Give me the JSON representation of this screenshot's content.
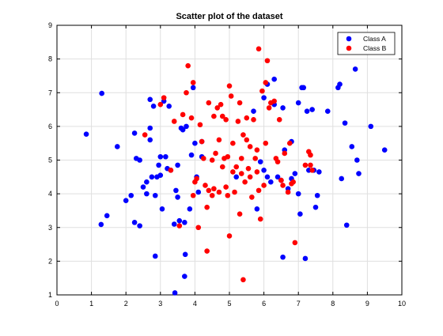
{
  "chart_data": {
    "type": "scatter",
    "title": "Scatter plot of the dataset",
    "xlabel": "",
    "ylabel": "",
    "xlim": [
      0,
      10
    ],
    "ylim": [
      1,
      9
    ],
    "xticks": [
      "0",
      "1",
      "2",
      "3",
      "4",
      "5",
      "6",
      "7",
      "8",
      "9",
      "10"
    ],
    "yticks": [
      "1",
      "2",
      "3",
      "4",
      "5",
      "6",
      "7",
      "8",
      "9"
    ],
    "grid": true,
    "legend_position": "top-right",
    "series": [
      {
        "name": "Class A",
        "color": "#0000ff",
        "points": [
          [
            0.85,
            5.77
          ],
          [
            1.3,
            6.98
          ],
          [
            1.28,
            3.09
          ],
          [
            1.45,
            3.35
          ],
          [
            1.75,
            5.4
          ],
          [
            2.0,
            3.8
          ],
          [
            2.15,
            3.95
          ],
          [
            2.25,
            5.8
          ],
          [
            2.25,
            3.15
          ],
          [
            2.3,
            5.05
          ],
          [
            2.4,
            5.0
          ],
          [
            2.4,
            3.05
          ],
          [
            2.5,
            4.2
          ],
          [
            2.6,
            4.35
          ],
          [
            2.6,
            4.0
          ],
          [
            2.7,
            5.6
          ],
          [
            2.7,
            6.8
          ],
          [
            2.7,
            5.95
          ],
          [
            2.75,
            4.5
          ],
          [
            2.8,
            6.6
          ],
          [
            2.85,
            2.15
          ],
          [
            2.85,
            3.95
          ],
          [
            2.9,
            4.5
          ],
          [
            2.95,
            4.85
          ],
          [
            3.0,
            5.1
          ],
          [
            3.0,
            4.55
          ],
          [
            3.05,
            3.55
          ],
          [
            3.1,
            6.75
          ],
          [
            3.15,
            5.1
          ],
          [
            3.2,
            4.75
          ],
          [
            3.25,
            6.6
          ],
          [
            3.3,
            4.7
          ],
          [
            3.4,
            3.1
          ],
          [
            3.42,
            1.06
          ],
          [
            3.45,
            4.1
          ],
          [
            3.5,
            3.9
          ],
          [
            3.5,
            4.85
          ],
          [
            3.55,
            3.2
          ],
          [
            3.6,
            5.95
          ],
          [
            3.65,
            5.9
          ],
          [
            3.7,
            3.15
          ],
          [
            3.7,
            1.55
          ],
          [
            3.72,
            2.2
          ],
          [
            3.75,
            6.0
          ],
          [
            3.85,
            3.55
          ],
          [
            3.9,
            5.15
          ],
          [
            3.95,
            7.15
          ],
          [
            4.0,
            5.5
          ],
          [
            4.05,
            4.5
          ],
          [
            4.1,
            4.05
          ],
          [
            4.2,
            5.1
          ],
          [
            4.2,
            5.55
          ],
          [
            5.2,
            4.5
          ],
          [
            5.7,
            6.45
          ],
          [
            5.8,
            3.55
          ],
          [
            5.9,
            4.95
          ],
          [
            6.0,
            6.85
          ],
          [
            6.0,
            4.7
          ],
          [
            6.1,
            4.5
          ],
          [
            6.1,
            7.25
          ],
          [
            6.2,
            4.35
          ],
          [
            6.3,
            7.4
          ],
          [
            6.3,
            6.65
          ],
          [
            6.4,
            4.5
          ],
          [
            6.5,
            4.4
          ],
          [
            6.55,
            6.55
          ],
          [
            6.55,
            2.12
          ],
          [
            6.6,
            5.3
          ],
          [
            6.7,
            4.15
          ],
          [
            6.8,
            4.45
          ],
          [
            6.8,
            5.55
          ],
          [
            6.9,
            4.6
          ],
          [
            7.0,
            6.7
          ],
          [
            7.0,
            4.0
          ],
          [
            7.05,
            3.4
          ],
          [
            7.1,
            7.15
          ],
          [
            7.15,
            7.15
          ],
          [
            7.2,
            2.08
          ],
          [
            7.25,
            6.45
          ],
          [
            7.3,
            4.7
          ],
          [
            7.4,
            6.5
          ],
          [
            7.45,
            4.7
          ],
          [
            7.5,
            3.6
          ],
          [
            7.55,
            3.95
          ],
          [
            7.6,
            4.65
          ],
          [
            7.85,
            6.45
          ],
          [
            8.15,
            7.15
          ],
          [
            8.2,
            7.25
          ],
          [
            8.25,
            4.45
          ],
          [
            8.35,
            6.1
          ],
          [
            8.4,
            3.07
          ],
          [
            8.55,
            5.4
          ],
          [
            8.65,
            7.7
          ],
          [
            8.7,
            5.0
          ],
          [
            8.75,
            4.6
          ],
          [
            9.1,
            6.0
          ],
          [
            9.5,
            5.3
          ]
        ]
      },
      {
        "name": "Class B",
        "color": "#ff0000",
        "points": [
          [
            2.55,
            5.75
          ],
          [
            3.0,
            6.65
          ],
          [
            3.1,
            6.85
          ],
          [
            3.3,
            4.7
          ],
          [
            3.4,
            6.15
          ],
          [
            3.55,
            3.05
          ],
          [
            3.65,
            6.35
          ],
          [
            3.75,
            7.0
          ],
          [
            3.8,
            7.8
          ],
          [
            3.9,
            6.25
          ],
          [
            3.95,
            3.95
          ],
          [
            3.95,
            7.3
          ],
          [
            4.0,
            4.35
          ],
          [
            4.05,
            4.45
          ],
          [
            4.1,
            3.0
          ],
          [
            4.15,
            6.05
          ],
          [
            4.2,
            5.55
          ],
          [
            4.25,
            5.05
          ],
          [
            4.3,
            4.25
          ],
          [
            4.35,
            3.6
          ],
          [
            4.35,
            2.3
          ],
          [
            4.4,
            6.7
          ],
          [
            4.4,
            4.1
          ],
          [
            4.5,
            5.0
          ],
          [
            4.5,
            3.95
          ],
          [
            4.55,
            6.3
          ],
          [
            4.55,
            4.15
          ],
          [
            4.6,
            5.2
          ],
          [
            4.65,
            6.55
          ],
          [
            4.7,
            4.05
          ],
          [
            4.7,
            5.6
          ],
          [
            4.75,
            6.65
          ],
          [
            4.8,
            6.3
          ],
          [
            4.8,
            4.8
          ],
          [
            4.85,
            5.05
          ],
          [
            4.9,
            4.2
          ],
          [
            4.9,
            6.2
          ],
          [
            4.95,
            5.1
          ],
          [
            4.95,
            3.95
          ],
          [
            5.0,
            7.2
          ],
          [
            5.0,
            2.75
          ],
          [
            5.05,
            6.9
          ],
          [
            5.1,
            5.5
          ],
          [
            5.1,
            4.65
          ],
          [
            5.15,
            4.05
          ],
          [
            5.2,
            4.8
          ],
          [
            5.25,
            6.15
          ],
          [
            5.3,
            6.7
          ],
          [
            5.3,
            3.4
          ],
          [
            5.35,
            5.05
          ],
          [
            5.35,
            4.6
          ],
          [
            5.4,
            5.75
          ],
          [
            5.4,
            1.45
          ],
          [
            5.45,
            4.35
          ],
          [
            5.5,
            5.6
          ],
          [
            5.5,
            6.25
          ],
          [
            5.55,
            4.75
          ],
          [
            5.6,
            5.4
          ],
          [
            5.6,
            4.5
          ],
          [
            5.65,
            3.9
          ],
          [
            5.7,
            6.2
          ],
          [
            5.75,
            5.05
          ],
          [
            5.8,
            4.65
          ],
          [
            5.8,
            5.3
          ],
          [
            5.85,
            4.1
          ],
          [
            5.85,
            8.3
          ],
          [
            5.9,
            3.25
          ],
          [
            5.95,
            7.05
          ],
          [
            6.0,
            4.25
          ],
          [
            6.05,
            7.3
          ],
          [
            6.05,
            5.5
          ],
          [
            6.1,
            7.95
          ],
          [
            6.15,
            6.55
          ],
          [
            6.2,
            6.7
          ],
          [
            6.3,
            6.75
          ],
          [
            6.35,
            5.05
          ],
          [
            6.4,
            4.95
          ],
          [
            6.45,
            6.2
          ],
          [
            6.5,
            4.4
          ],
          [
            6.55,
            4.25
          ],
          [
            6.6,
            5.2
          ],
          [
            6.7,
            4.05
          ],
          [
            6.75,
            5.5
          ],
          [
            6.8,
            4.3
          ],
          [
            6.85,
            4.35
          ],
          [
            6.9,
            2.55
          ],
          [
            7.3,
            5.25
          ],
          [
            7.35,
            4.85
          ],
          [
            7.4,
            4.7
          ],
          [
            7.35,
            5.15
          ],
          [
            7.2,
            4.85
          ]
        ]
      }
    ]
  }
}
